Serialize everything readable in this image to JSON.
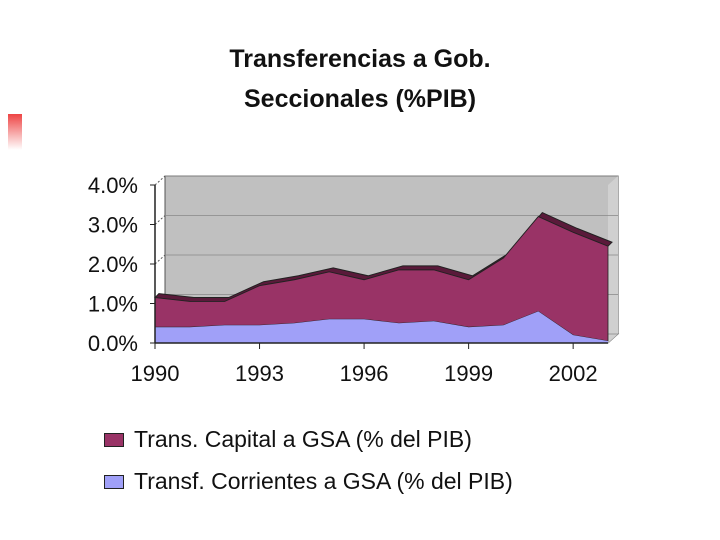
{
  "chart_data": {
    "type": "area",
    "title_line1": "Transferencias a Gob.",
    "title_line2": "Seccionales (%PIB)",
    "y_ticks": [
      "4.0%",
      "3.0%",
      "2.0%",
      "1.0%",
      "0.0%"
    ],
    "y_tick_values": [
      4.0,
      3.0,
      2.0,
      1.0,
      0.0
    ],
    "x_ticks": [
      "1990",
      "1993",
      "1996",
      "1999",
      "2002"
    ],
    "x_tick_values": [
      1990,
      1993,
      1996,
      1999,
      2002
    ],
    "ylim": [
      0,
      4.0
    ],
    "xlim": [
      1990,
      2003
    ],
    "stacked": true,
    "x": [
      1990,
      1991,
      1992,
      1993,
      1994,
      1995,
      1996,
      1997,
      1998,
      1999,
      2000,
      2001,
      2002,
      2003
    ],
    "series": [
      {
        "name": "Transf. Corrientes a GSA (% del PIB)",
        "color": "#a0a0f8",
        "values": [
          0.4,
          0.4,
          0.45,
          0.45,
          0.5,
          0.6,
          0.6,
          0.5,
          0.55,
          0.4,
          0.45,
          0.8,
          0.2,
          0.05
        ]
      },
      {
        "name": "Trans. Capital a GSA (% del PIB)",
        "color": "#993366",
        "values": [
          0.75,
          0.65,
          0.6,
          1.0,
          1.1,
          1.2,
          1.0,
          1.35,
          1.3,
          1.2,
          1.7,
          2.4,
          2.6,
          2.4
        ]
      }
    ],
    "wall_color": "#c0c0c0",
    "legend_position": "bottom"
  }
}
